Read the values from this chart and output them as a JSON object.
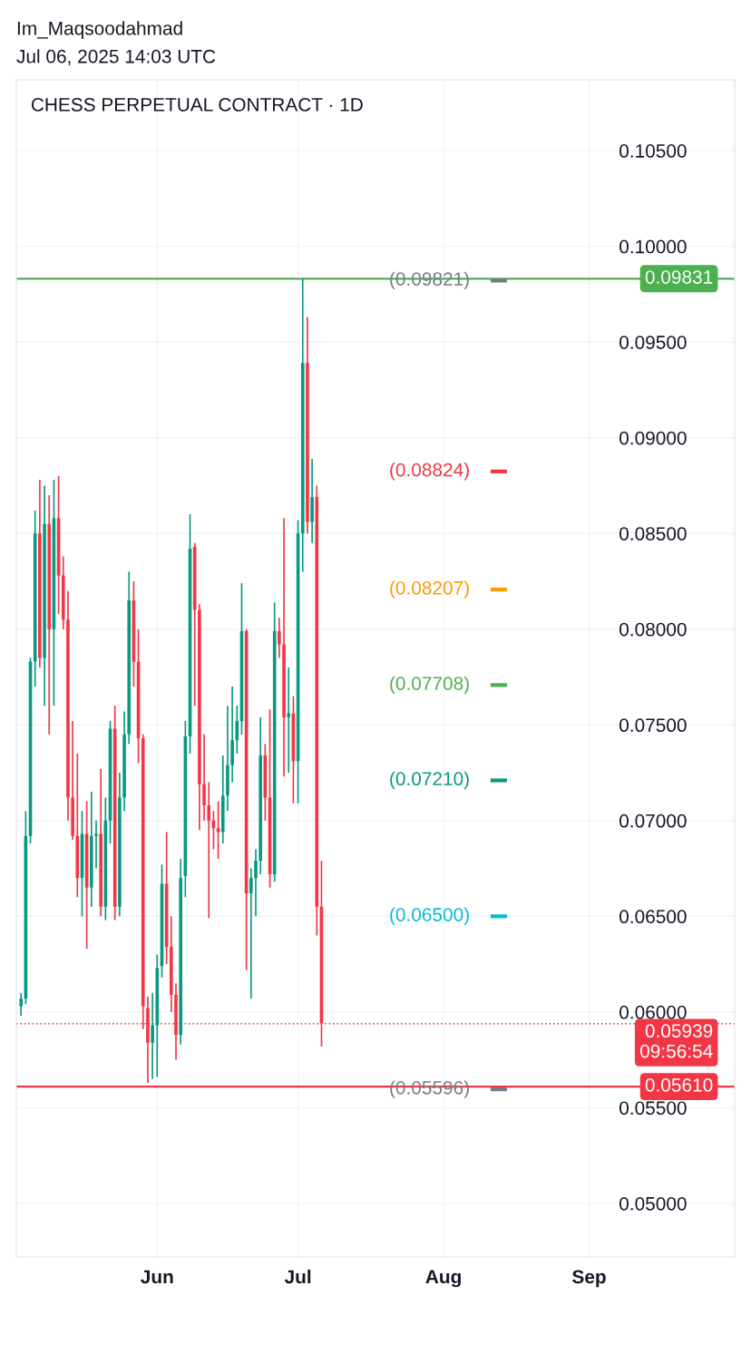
{
  "chart_data": {
    "type": "candlestick",
    "title": "CHESS PERPETUAL CONTRACT · 1D",
    "annotations": [
      "Im_Maqsoodahmad",
      "Jul 06, 2025 14:03 UTC"
    ],
    "x": [
      "2025-05-03",
      "2025-05-04",
      "2025-05-05",
      "2025-05-06",
      "2025-05-07",
      "2025-05-08",
      "2025-05-09",
      "2025-05-10",
      "2025-05-11",
      "2025-05-12",
      "2025-05-13",
      "2025-05-14",
      "2025-05-15",
      "2025-05-16",
      "2025-05-17",
      "2025-05-18",
      "2025-05-19",
      "2025-05-20",
      "2025-05-21",
      "2025-05-22",
      "2025-05-23",
      "2025-05-24",
      "2025-05-25",
      "2025-05-26",
      "2025-05-27",
      "2025-05-28",
      "2025-05-29",
      "2025-05-30",
      "2025-05-31",
      "2025-06-01",
      "2025-06-02",
      "2025-06-03",
      "2025-06-04",
      "2025-06-05",
      "2025-06-06",
      "2025-06-07",
      "2025-06-08",
      "2025-06-09",
      "2025-06-10",
      "2025-06-11",
      "2025-06-12",
      "2025-06-13",
      "2025-06-14",
      "2025-06-15",
      "2025-06-16",
      "2025-06-17",
      "2025-06-18",
      "2025-06-19",
      "2025-06-20",
      "2025-06-21",
      "2025-06-22",
      "2025-06-23",
      "2025-06-24",
      "2025-06-25",
      "2025-06-26",
      "2025-06-27",
      "2025-06-28",
      "2025-06-29",
      "2025-06-30",
      "2025-07-01",
      "2025-07-02",
      "2025-07-03",
      "2025-07-04",
      "2025-07-05",
      "2025-07-06"
    ],
    "ohlc": [
      [
        0.0603,
        0.061,
        0.0598,
        0.0607
      ],
      [
        0.0607,
        0.0705,
        0.0604,
        0.0692
      ],
      [
        0.0692,
        0.0785,
        0.0688,
        0.0783
      ],
      [
        0.0783,
        0.0862,
        0.077,
        0.085
      ],
      [
        0.085,
        0.0878,
        0.078,
        0.0785
      ],
      [
        0.0785,
        0.0875,
        0.076,
        0.0855
      ],
      [
        0.0855,
        0.087,
        0.0745,
        0.08
      ],
      [
        0.08,
        0.0878,
        0.076,
        0.0858
      ],
      [
        0.0858,
        0.088,
        0.0808,
        0.0828
      ],
      [
        0.0828,
        0.0838,
        0.08,
        0.0805
      ],
      [
        0.0805,
        0.082,
        0.07,
        0.0712
      ],
      [
        0.0712,
        0.0752,
        0.069,
        0.0692
      ],
      [
        0.0692,
        0.0735,
        0.066,
        0.067
      ],
      [
        0.067,
        0.0705,
        0.065,
        0.0693
      ],
      [
        0.0693,
        0.071,
        0.0633,
        0.0665
      ],
      [
        0.0665,
        0.0715,
        0.0655,
        0.0692
      ],
      [
        0.0692,
        0.07,
        0.0675,
        0.0693
      ],
      [
        0.0693,
        0.0727,
        0.065,
        0.0655
      ],
      [
        0.0655,
        0.0712,
        0.0648,
        0.07
      ],
      [
        0.07,
        0.0752,
        0.0688,
        0.0748
      ],
      [
        0.0748,
        0.076,
        0.0648,
        0.0655
      ],
      [
        0.0655,
        0.0725,
        0.065,
        0.0712
      ],
      [
        0.0712,
        0.0757,
        0.0705,
        0.0745
      ],
      [
        0.0745,
        0.083,
        0.074,
        0.0815
      ],
      [
        0.0815,
        0.0825,
        0.077,
        0.0783
      ],
      [
        0.0783,
        0.08,
        0.073,
        0.0743
      ],
      [
        0.0743,
        0.0745,
        0.0591,
        0.0603
      ],
      [
        0.0602,
        0.0608,
        0.0563,
        0.0584
      ],
      [
        0.0584,
        0.061,
        0.0565,
        0.0593
      ],
      [
        0.0593,
        0.063,
        0.0566,
        0.0623
      ],
      [
        0.0624,
        0.0677,
        0.0618,
        0.0667
      ],
      [
        0.0667,
        0.0694,
        0.0625,
        0.0634
      ],
      [
        0.0634,
        0.065,
        0.06,
        0.0609
      ],
      [
        0.0609,
        0.0615,
        0.0575,
        0.0588
      ],
      [
        0.0588,
        0.068,
        0.0583,
        0.067
      ],
      [
        0.0671,
        0.0752,
        0.066,
        0.0744
      ],
      [
        0.0744,
        0.086,
        0.0735,
        0.0842
      ],
      [
        0.0843,
        0.0845,
        0.076,
        0.081
      ],
      [
        0.081,
        0.0813,
        0.0695,
        0.0719
      ],
      [
        0.0719,
        0.0745,
        0.07,
        0.0708
      ],
      [
        0.0708,
        0.072,
        0.0649,
        0.07
      ],
      [
        0.07,
        0.0705,
        0.0685,
        0.0696
      ],
      [
        0.0696,
        0.071,
        0.068,
        0.0694
      ],
      [
        0.0694,
        0.0734,
        0.0688,
        0.0713
      ],
      [
        0.0713,
        0.076,
        0.0705,
        0.0729
      ],
      [
        0.0729,
        0.077,
        0.072,
        0.0742
      ],
      [
        0.0742,
        0.076,
        0.0735,
        0.0752
      ],
      [
        0.0752,
        0.0824,
        0.0745,
        0.0799
      ],
      [
        0.0799,
        0.08,
        0.0622,
        0.0662
      ],
      [
        0.0662,
        0.0675,
        0.0607,
        0.067
      ],
      [
        0.067,
        0.0685,
        0.065,
        0.0679
      ],
      [
        0.0679,
        0.0754,
        0.0672,
        0.0734
      ],
      [
        0.0734,
        0.074,
        0.07,
        0.0712
      ],
      [
        0.0712,
        0.0758,
        0.0665,
        0.0672
      ],
      [
        0.0672,
        0.0814,
        0.0668,
        0.0799
      ],
      [
        0.0799,
        0.0806,
        0.0785,
        0.0792
      ],
      [
        0.0792,
        0.0858,
        0.0723,
        0.0754
      ],
      [
        0.0754,
        0.078,
        0.0725,
        0.0756
      ],
      [
        0.0756,
        0.0765,
        0.0709,
        0.0731
      ],
      [
        0.0731,
        0.0857,
        0.0709,
        0.085
      ],
      [
        0.085,
        0.0983,
        0.083,
        0.0939
      ],
      [
        0.0939,
        0.0963,
        0.085,
        0.0856
      ],
      [
        0.0856,
        0.0889,
        0.0845,
        0.0869
      ],
      [
        0.0869,
        0.0875,
        0.064,
        0.0655
      ],
      [
        0.0655,
        0.0679,
        0.0582,
        0.0594
      ]
    ],
    "xlim": [
      "2025-05-02",
      "2025-10-02"
    ],
    "xticks": [
      {
        "value": "2025-06-01",
        "label": "Jun"
      },
      {
        "value": "2025-07-01",
        "label": "Jul"
      },
      {
        "value": "2025-08-01",
        "label": "Aug"
      },
      {
        "value": "2025-09-01",
        "label": "Sep"
      }
    ],
    "ylim": [
      0.0472,
      0.1087
    ],
    "yticks": [
      {
        "value": 0.05,
        "label": "0.05000"
      },
      {
        "value": 0.055,
        "label": "0.05500"
      },
      {
        "value": 0.06,
        "label": "0.06000"
      },
      {
        "value": 0.065,
        "label": "0.06500"
      },
      {
        "value": 0.07,
        "label": "0.07000"
      },
      {
        "value": 0.075,
        "label": "0.07500"
      },
      {
        "value": 0.08,
        "label": "0.08000"
      },
      {
        "value": 0.085,
        "label": "0.08500"
      },
      {
        "value": 0.09,
        "label": "0.09000"
      },
      {
        "value": 0.095,
        "label": "0.09500"
      },
      {
        "value": 0.1,
        "label": "0.10000"
      },
      {
        "value": 0.105,
        "label": "0.10500"
      }
    ],
    "ref_lines": [
      {
        "axis": "y",
        "value": 0.09831,
        "label": "0.09831",
        "color": "#4caf50",
        "line_style": "solid"
      },
      {
        "axis": "y",
        "value": 0.05939,
        "label": "0.05939\n09:56:54",
        "color": "#f23645",
        "line_style": "dotted"
      },
      {
        "axis": "y",
        "value": 0.0561,
        "label": "0.05610",
        "color": "#f23645",
        "line_style": "solid"
      },
      {
        "axis": "y",
        "value": 0.09821,
        "label": "(0.09821)",
        "color": "#787b86"
      },
      {
        "axis": "y",
        "value": 0.08824,
        "label": "(0.08824)",
        "color": "#f23645"
      },
      {
        "axis": "y",
        "value": 0.08207,
        "label": "(0.08207)",
        "color": "#ff9800"
      },
      {
        "axis": "y",
        "value": 0.07708,
        "label": "(0.07708)",
        "color": "#4caf50"
      },
      {
        "axis": "y",
        "value": 0.0721,
        "label": "(0.07210)",
        "color": "#089981"
      },
      {
        "axis": "y",
        "value": 0.065,
        "label": "(0.06500)",
        "color": "#00bcd4"
      },
      {
        "axis": "y",
        "value": 0.05596,
        "label": "(0.05596)",
        "color": "#787b86"
      }
    ],
    "grid": true
  }
}
